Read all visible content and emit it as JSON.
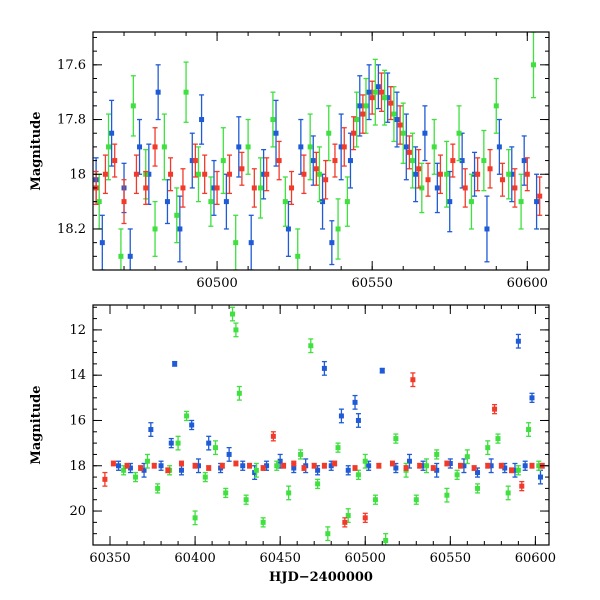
{
  "chart_data": [
    {
      "type": "scatter",
      "title": "",
      "xlabel": "",
      "ylabel": "Magnitude",
      "xlim": [
        60460,
        60607
      ],
      "ylim": [
        18.35,
        17.48
      ],
      "y_inverted": true,
      "x_major_ticks": [
        60500,
        60550,
        60600
      ],
      "y_major_ticks": [
        17.6,
        17.8,
        18,
        18.2
      ],
      "x_tick_labels": [
        "60500",
        "60550",
        "60600"
      ],
      "y_tick_labels": [
        "17.6",
        "17.8",
        "18",
        "18.2"
      ],
      "error_bars": true,
      "series": [
        {
          "color": "#1f5bd6",
          "x": [
            60461,
            60463,
            60466,
            60470,
            60472,
            60475,
            60478,
            60481,
            60484,
            60488,
            60492,
            60495,
            60499,
            60503,
            60507,
            60511,
            60515,
            60519,
            60523,
            60527,
            60531,
            60534,
            60537,
            60540,
            60543,
            60546,
            60549,
            60552,
            60555,
            60558,
            60561,
            60564,
            60567,
            60571,
            60575,
            60579,
            60583,
            60587,
            60591,
            60595,
            60599,
            60603
          ],
          "y": [
            18.02,
            18.25,
            17.85,
            18.05,
            18.3,
            17.9,
            18.0,
            17.7,
            18.1,
            18.2,
            17.95,
            17.8,
            18.05,
            18.1,
            17.9,
            18.25,
            18.0,
            17.85,
            18.2,
            17.9,
            17.95,
            18.1,
            18.25,
            17.9,
            17.95,
            17.75,
            17.7,
            17.68,
            17.72,
            17.8,
            17.9,
            18.0,
            17.85,
            18.05,
            18.1,
            17.95,
            18.0,
            18.2,
            17.9,
            18.0,
            17.95,
            18.1
          ],
          "err": [
            0.08,
            0.1,
            0.12,
            0.09,
            0.1,
            0.1,
            0.11,
            0.1,
            0.08,
            0.12,
            0.1,
            0.09,
            0.1,
            0.1,
            0.11,
            0.1,
            0.09,
            0.12,
            0.1,
            0.1,
            0.09,
            0.1,
            0.08,
            0.12,
            0.1,
            0.11,
            0.1,
            0.08,
            0.09,
            0.1,
            0.12,
            0.1,
            0.1,
            0.09,
            0.11,
            0.1,
            0.08,
            0.12,
            0.1,
            0.1,
            0.09,
            0.1
          ]
        },
        {
          "color": "#3fe03f",
          "x": [
            60462,
            60465,
            60469,
            60473,
            60477,
            60480,
            60483,
            60487,
            60490,
            60494,
            60498,
            60502,
            60506,
            60510,
            60514,
            60518,
            60522,
            60526,
            60530,
            60533,
            60536,
            60539,
            60542,
            60545,
            60548,
            60551,
            60554,
            60557,
            60560,
            60563,
            60566,
            60570,
            60574,
            60578,
            60582,
            60586,
            60590,
            60594,
            60598,
            60602
          ],
          "y": [
            18.1,
            17.9,
            18.3,
            17.75,
            18.0,
            18.2,
            17.9,
            18.15,
            17.7,
            18.0,
            18.1,
            17.95,
            18.25,
            17.9,
            18.05,
            17.8,
            18.1,
            18.3,
            17.9,
            18.0,
            17.85,
            18.2,
            18.1,
            17.8,
            17.75,
            17.7,
            17.72,
            17.78,
            17.85,
            17.95,
            18.05,
            17.9,
            18.0,
            17.85,
            18.1,
            17.95,
            17.75,
            18.0,
            18.1,
            17.6
          ],
          "err": [
            0.1,
            0.12,
            0.1,
            0.11,
            0.09,
            0.1,
            0.12,
            0.1,
            0.11,
            0.1,
            0.09,
            0.12,
            0.1,
            0.1,
            0.11,
            0.1,
            0.09,
            0.1,
            0.12,
            0.1,
            0.1,
            0.11,
            0.09,
            0.1,
            0.1,
            0.12,
            0.1,
            0.1,
            0.11,
            0.1,
            0.09,
            0.1,
            0.12,
            0.1,
            0.1,
            0.11,
            0.1,
            0.09,
            0.1,
            0.12
          ]
        },
        {
          "color": "#f23a2a",
          "x": [
            60461,
            60464,
            60467,
            60470,
            60474,
            60477,
            60480,
            60485,
            60489,
            60493,
            60496,
            60500,
            60504,
            60508,
            60512,
            60516,
            60520,
            60524,
            60528,
            60532,
            60535,
            60538,
            60541,
            60544,
            60547,
            60550,
            60553,
            60556,
            60559,
            60562,
            60565,
            60568,
            60572,
            60576,
            60580,
            60584,
            60588,
            60592,
            60596,
            60600,
            60604
          ],
          "y": [
            18.05,
            18.0,
            17.95,
            18.1,
            18.0,
            18.05,
            17.9,
            18.0,
            18.05,
            17.95,
            18.0,
            18.05,
            18.0,
            17.98,
            18.05,
            18.0,
            17.95,
            18.05,
            18.0,
            17.98,
            18.02,
            17.95,
            17.9,
            17.85,
            17.78,
            17.72,
            17.7,
            17.74,
            17.82,
            17.92,
            17.98,
            18.02,
            18.0,
            17.95,
            18.05,
            18.0,
            17.98,
            18.02,
            18.05,
            18.0,
            18.08
          ],
          "err": [
            0.06,
            0.07,
            0.06,
            0.08,
            0.07,
            0.06,
            0.07,
            0.06,
            0.07,
            0.06,
            0.07,
            0.06,
            0.07,
            0.06,
            0.07,
            0.06,
            0.07,
            0.06,
            0.07,
            0.06,
            0.07,
            0.06,
            0.07,
            0.06,
            0.07,
            0.06,
            0.07,
            0.06,
            0.07,
            0.06,
            0.07,
            0.06,
            0.07,
            0.06,
            0.07,
            0.06,
            0.07,
            0.06,
            0.07,
            0.06,
            0.07
          ]
        }
      ]
    },
    {
      "type": "scatter",
      "title": "",
      "xlabel": "HJD−2400000",
      "ylabel": "Magnitude",
      "xlim": [
        60340,
        60608
      ],
      "ylim": [
        21.5,
        10.9
      ],
      "y_inverted": true,
      "x_major_ticks": [
        60350,
        60400,
        60450,
        60500,
        60550,
        60600
      ],
      "y_major_ticks": [
        12,
        14,
        16,
        18,
        20
      ],
      "x_tick_labels": [
        "60350",
        "60400",
        "60450",
        "60500",
        "60550",
        "60600"
      ],
      "y_tick_labels": [
        "12",
        "14",
        "16",
        "18",
        "20"
      ],
      "error_bars": true,
      "series": [
        {
          "color": "#1f5bd6",
          "x": [
            60355,
            60362,
            60370,
            60374,
            60380,
            60386,
            60388,
            60392,
            60398,
            60402,
            60408,
            60415,
            60420,
            60428,
            60435,
            60442,
            60450,
            60458,
            60465,
            60472,
            60476,
            60480,
            60486,
            60490,
            60494,
            60496,
            60502,
            60510,
            60518,
            60526,
            60534,
            60542,
            60550,
            60558,
            60566,
            60574,
            60582,
            60588,
            60590,
            60594,
            60598,
            60603
          ],
          "y": [
            18.0,
            18.1,
            18.2,
            16.4,
            18.0,
            17.0,
            13.5,
            18.2,
            16.2,
            18.0,
            17.0,
            18.1,
            17.5,
            18.0,
            18.3,
            18.0,
            17.8,
            18.1,
            18.0,
            18.2,
            13.7,
            18.0,
            15.8,
            18.2,
            15.2,
            16.0,
            18.0,
            13.8,
            18.1,
            17.8,
            18.0,
            18.2,
            17.9,
            18.0,
            18.3,
            18.0,
            18.1,
            18.2,
            12.5,
            18.0,
            15.0,
            18.5
          ],
          "err": [
            0.2,
            0.2,
            0.3,
            0.3,
            0.2,
            0.2,
            0.1,
            0.2,
            0.2,
            0.3,
            0.3,
            0.2,
            0.3,
            0.2,
            0.3,
            0.2,
            0.3,
            0.2,
            0.3,
            0.2,
            0.3,
            0.2,
            0.3,
            0.2,
            0.3,
            0.3,
            0.2,
            0.1,
            0.2,
            0.3,
            0.2,
            0.3,
            0.2,
            0.3,
            0.2,
            0.3,
            0.2,
            0.3,
            0.3,
            0.2,
            0.2,
            0.3
          ]
        },
        {
          "color": "#3fe03f",
          "x": [
            60358,
            60365,
            60372,
            60378,
            60385,
            60390,
            60395,
            60400,
            60406,
            60412,
            60418,
            60422,
            60424,
            60426,
            60430,
            60436,
            60440,
            60448,
            60455,
            60462,
            60468,
            60472,
            60478,
            60484,
            60490,
            60496,
            60500,
            60506,
            60512,
            60518,
            60524,
            60530,
            60536,
            60542,
            60548,
            60554,
            60560,
            60566,
            60572,
            60578,
            60584,
            60590,
            60596,
            60602
          ],
          "y": [
            18.2,
            18.5,
            17.8,
            19.0,
            18.2,
            17.0,
            15.8,
            20.3,
            18.5,
            17.2,
            19.2,
            11.3,
            12.0,
            14.8,
            19.5,
            18.2,
            20.5,
            18.0,
            19.2,
            17.5,
            12.7,
            18.8,
            21.0,
            17.2,
            20.2,
            18.4,
            17.8,
            19.5,
            21.3,
            16.8,
            18.2,
            19.5,
            18.0,
            17.5,
            19.3,
            18.4,
            17.6,
            19.0,
            17.2,
            16.8,
            19.2,
            18.2,
            16.4,
            18.0
          ],
          "err": [
            0.2,
            0.2,
            0.3,
            0.2,
            0.2,
            0.3,
            0.2,
            0.3,
            0.2,
            0.3,
            0.2,
            0.3,
            0.3,
            0.3,
            0.2,
            0.3,
            0.2,
            0.2,
            0.3,
            0.2,
            0.3,
            0.2,
            0.3,
            0.2,
            0.3,
            0.2,
            0.3,
            0.2,
            0.3,
            0.2,
            0.3,
            0.2,
            0.3,
            0.2,
            0.3,
            0.2,
            0.3,
            0.2,
            0.3,
            0.2,
            0.3,
            0.2,
            0.3,
            0.2
          ]
        },
        {
          "color": "#f23a2a",
          "x": [
            60347,
            60352,
            60360,
            60368,
            60376,
            60384,
            60392,
            60400,
            60408,
            60416,
            60424,
            60432,
            60440,
            60446,
            60452,
            60458,
            60464,
            60470,
            60476,
            60482,
            60488,
            60494,
            60500,
            60508,
            60516,
            60524,
            60528,
            60532,
            60540,
            60548,
            60556,
            60564,
            60572,
            60576,
            60580,
            60586,
            60592,
            60598,
            60604
          ],
          "y": [
            18.6,
            17.9,
            18.0,
            18.1,
            18.0,
            18.2,
            17.9,
            18.0,
            18.1,
            18.0,
            17.9,
            18.0,
            18.1,
            16.7,
            18.0,
            17.9,
            18.1,
            18.0,
            18.0,
            17.9,
            20.5,
            18.1,
            20.3,
            18.0,
            17.9,
            18.1,
            14.2,
            18.0,
            18.1,
            17.9,
            18.0,
            18.1,
            18.0,
            15.5,
            18.0,
            18.2,
            18.9,
            18.0,
            18.0
          ],
          "err": [
            0.3,
            0.1,
            0.1,
            0.1,
            0.1,
            0.1,
            0.1,
            0.1,
            0.1,
            0.1,
            0.1,
            0.1,
            0.1,
            0.2,
            0.1,
            0.1,
            0.1,
            0.1,
            0.1,
            0.1,
            0.2,
            0.1,
            0.2,
            0.1,
            0.1,
            0.1,
            0.3,
            0.1,
            0.1,
            0.1,
            0.1,
            0.1,
            0.1,
            0.2,
            0.1,
            0.1,
            0.2,
            0.1,
            0.1
          ]
        }
      ]
    }
  ]
}
